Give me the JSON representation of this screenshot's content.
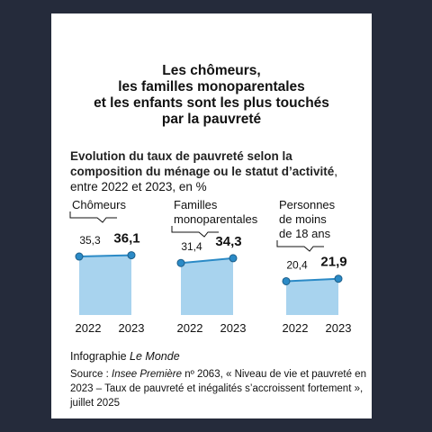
{
  "header": {
    "title": [
      "Les chômeurs,",
      "les familles monoparentales",
      "et les enfants sont les plus touchés",
      "par la pauvreté"
    ]
  },
  "subtitle": {
    "lead": "Evolution du taux de pauvreté selon la composition du ménage ou le statut d’activité",
    "rest": ", entre 2022 et 2023, en %"
  },
  "chart_data": [
    {
      "type": "line",
      "title": [
        "Chômeurs"
      ],
      "categories": [
        "2022",
        "2023"
      ],
      "values": [
        35.3,
        36.1
      ],
      "value_labels": [
        "35,3",
        "36,1"
      ],
      "ylim": [
        0,
        40
      ],
      "color": "#2b8ac6",
      "area_color": "#a8d3ee"
    },
    {
      "type": "line",
      "title": [
        "Familles",
        "monoparentales"
      ],
      "categories": [
        "2022",
        "2023"
      ],
      "values": [
        31.4,
        34.3
      ],
      "value_labels": [
        "31,4",
        "34,3"
      ],
      "ylim": [
        0,
        40
      ],
      "color": "#2b8ac6",
      "area_color": "#a8d3ee"
    },
    {
      "type": "line",
      "title": [
        "Personnes",
        "de moins",
        "de 18 ans"
      ],
      "categories": [
        "2022",
        "2023"
      ],
      "values": [
        20.4,
        21.9
      ],
      "value_labels": [
        "20,4",
        "21,9"
      ],
      "ylim": [
        0,
        40
      ],
      "color": "#2b8ac6",
      "area_color": "#a8d3ee"
    }
  ],
  "footer": {
    "credit": "Infographie",
    "credit_outlet": "Le Monde",
    "source_label": "Source :",
    "source_publication": "Insee Première",
    "source_text": "nº 2063, « Niveau de vie et pauvreté en 2023 – Taux de pauvreté et inégalités s’accroissent fortement », juillet 2025"
  }
}
